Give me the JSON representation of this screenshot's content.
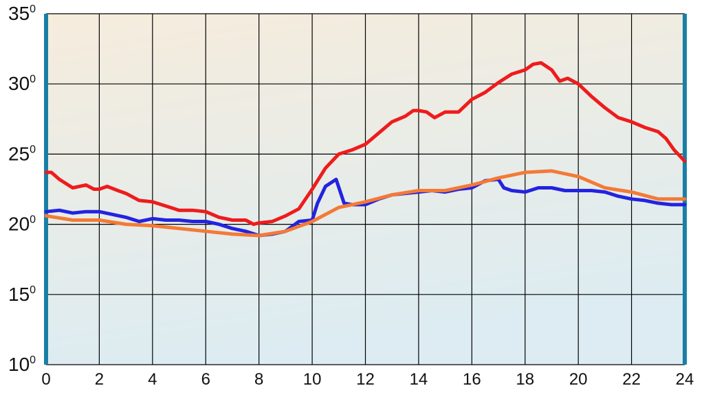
{
  "chart_data": {
    "type": "line",
    "title": "",
    "xlabel": "",
    "ylabel": "",
    "xlim": [
      0,
      24
    ],
    "ylim": [
      10,
      35
    ],
    "grid": true,
    "legend": "none",
    "x_ticks": [
      "0",
      "2",
      "4",
      "6",
      "8",
      "10",
      "12",
      "14",
      "16",
      "18",
      "20",
      "22",
      "24"
    ],
    "y_ticks": [
      {
        "value": 10,
        "label": "10",
        "sup": "0"
      },
      {
        "value": 15,
        "label": "15",
        "sup": "0"
      },
      {
        "value": 20,
        "label": "20",
        "sup": "0"
      },
      {
        "value": 25,
        "label": "25",
        "sup": "0"
      },
      {
        "value": 30,
        "label": "30",
        "sup": "0"
      },
      {
        "value": 35,
        "label": "35",
        "sup": "0"
      }
    ],
    "colors": {
      "background_top": "#f6ecdc",
      "background_bottom": "#dcecf2",
      "grid": "#000000",
      "side_bars": "#1a7fa6"
    },
    "series": [
      {
        "color": "#ee1c1c",
        "points": [
          [
            0,
            23.7
          ],
          [
            0.2,
            23.7
          ],
          [
            0.5,
            23.2
          ],
          [
            1,
            22.6
          ],
          [
            1.5,
            22.8
          ],
          [
            1.8,
            22.5
          ],
          [
            2,
            22.5
          ],
          [
            2.3,
            22.7
          ],
          [
            2.7,
            22.4
          ],
          [
            3,
            22.2
          ],
          [
            3.5,
            21.7
          ],
          [
            4,
            21.6
          ],
          [
            4.5,
            21.3
          ],
          [
            5,
            21.0
          ],
          [
            5.5,
            21.0
          ],
          [
            6,
            20.9
          ],
          [
            6.5,
            20.5
          ],
          [
            7,
            20.3
          ],
          [
            7.5,
            20.3
          ],
          [
            7.8,
            20.0
          ],
          [
            8,
            20.1
          ],
          [
            8.5,
            20.2
          ],
          [
            9,
            20.6
          ],
          [
            9.5,
            21.1
          ],
          [
            10,
            22.5
          ],
          [
            10.5,
            24.0
          ],
          [
            11,
            25.0
          ],
          [
            11.5,
            25.3
          ],
          [
            12,
            25.7
          ],
          [
            12.5,
            26.5
          ],
          [
            13,
            27.3
          ],
          [
            13.5,
            27.7
          ],
          [
            13.8,
            28.1
          ],
          [
            14,
            28.1
          ],
          [
            14.3,
            28.0
          ],
          [
            14.6,
            27.6
          ],
          [
            15,
            28.0
          ],
          [
            15.5,
            28.0
          ],
          [
            16,
            28.9
          ],
          [
            16.5,
            29.4
          ],
          [
            17,
            30.1
          ],
          [
            17.5,
            30.7
          ],
          [
            18,
            31.0
          ],
          [
            18.3,
            31.4
          ],
          [
            18.6,
            31.5
          ],
          [
            19,
            31.0
          ],
          [
            19.3,
            30.2
          ],
          [
            19.6,
            30.4
          ],
          [
            20,
            30.0
          ],
          [
            20.5,
            29.1
          ],
          [
            21,
            28.3
          ],
          [
            21.5,
            27.6
          ],
          [
            22,
            27.3
          ],
          [
            22.5,
            26.9
          ],
          [
            23,
            26.6
          ],
          [
            23.3,
            26.1
          ],
          [
            23.6,
            25.3
          ],
          [
            24,
            24.5
          ]
        ]
      },
      {
        "color": "#2323e0",
        "points": [
          [
            0,
            20.9
          ],
          [
            0.5,
            21.0
          ],
          [
            1,
            20.8
          ],
          [
            1.5,
            20.9
          ],
          [
            2,
            20.9
          ],
          [
            2.5,
            20.7
          ],
          [
            3,
            20.5
          ],
          [
            3.5,
            20.2
          ],
          [
            4,
            20.4
          ],
          [
            4.5,
            20.3
          ],
          [
            5,
            20.3
          ],
          [
            5.5,
            20.2
          ],
          [
            6,
            20.2
          ],
          [
            6.5,
            20.0
          ],
          [
            7,
            19.7
          ],
          [
            7.5,
            19.5
          ],
          [
            8,
            19.2
          ],
          [
            8.5,
            19.3
          ],
          [
            9,
            19.5
          ],
          [
            9.5,
            20.2
          ],
          [
            10,
            20.3
          ],
          [
            10.2,
            21.5
          ],
          [
            10.5,
            22.7
          ],
          [
            10.9,
            23.2
          ],
          [
            11.2,
            21.5
          ],
          [
            11.5,
            21.4
          ],
          [
            12,
            21.4
          ],
          [
            12.5,
            21.8
          ],
          [
            13,
            22.1
          ],
          [
            13.5,
            22.2
          ],
          [
            14,
            22.3
          ],
          [
            14.5,
            22.4
          ],
          [
            15,
            22.3
          ],
          [
            15.5,
            22.5
          ],
          [
            16,
            22.6
          ],
          [
            16.5,
            23.1
          ],
          [
            17,
            23.2
          ],
          [
            17.2,
            22.6
          ],
          [
            17.5,
            22.4
          ],
          [
            18,
            22.3
          ],
          [
            18.5,
            22.6
          ],
          [
            19,
            22.6
          ],
          [
            19.5,
            22.4
          ],
          [
            20,
            22.4
          ],
          [
            20.5,
            22.4
          ],
          [
            21,
            22.3
          ],
          [
            21.5,
            22.0
          ],
          [
            22,
            21.8
          ],
          [
            22.5,
            21.7
          ],
          [
            23,
            21.5
          ],
          [
            23.5,
            21.4
          ],
          [
            24,
            21.4
          ]
        ]
      },
      {
        "color": "#f47a36",
        "points": [
          [
            0,
            20.6
          ],
          [
            1,
            20.3
          ],
          [
            2,
            20.3
          ],
          [
            3,
            20.0
          ],
          [
            4,
            19.9
          ],
          [
            5,
            19.7
          ],
          [
            6,
            19.5
          ],
          [
            7,
            19.3
          ],
          [
            8,
            19.2
          ],
          [
            9,
            19.5
          ],
          [
            10,
            20.2
          ],
          [
            11,
            21.2
          ],
          [
            12,
            21.6
          ],
          [
            13,
            22.1
          ],
          [
            14,
            22.4
          ],
          [
            15,
            22.4
          ],
          [
            16,
            22.8
          ],
          [
            17,
            23.3
          ],
          [
            18,
            23.7
          ],
          [
            19,
            23.8
          ],
          [
            20,
            23.4
          ],
          [
            21,
            22.6
          ],
          [
            22,
            22.3
          ],
          [
            23,
            21.8
          ],
          [
            24,
            21.8
          ]
        ]
      }
    ]
  }
}
